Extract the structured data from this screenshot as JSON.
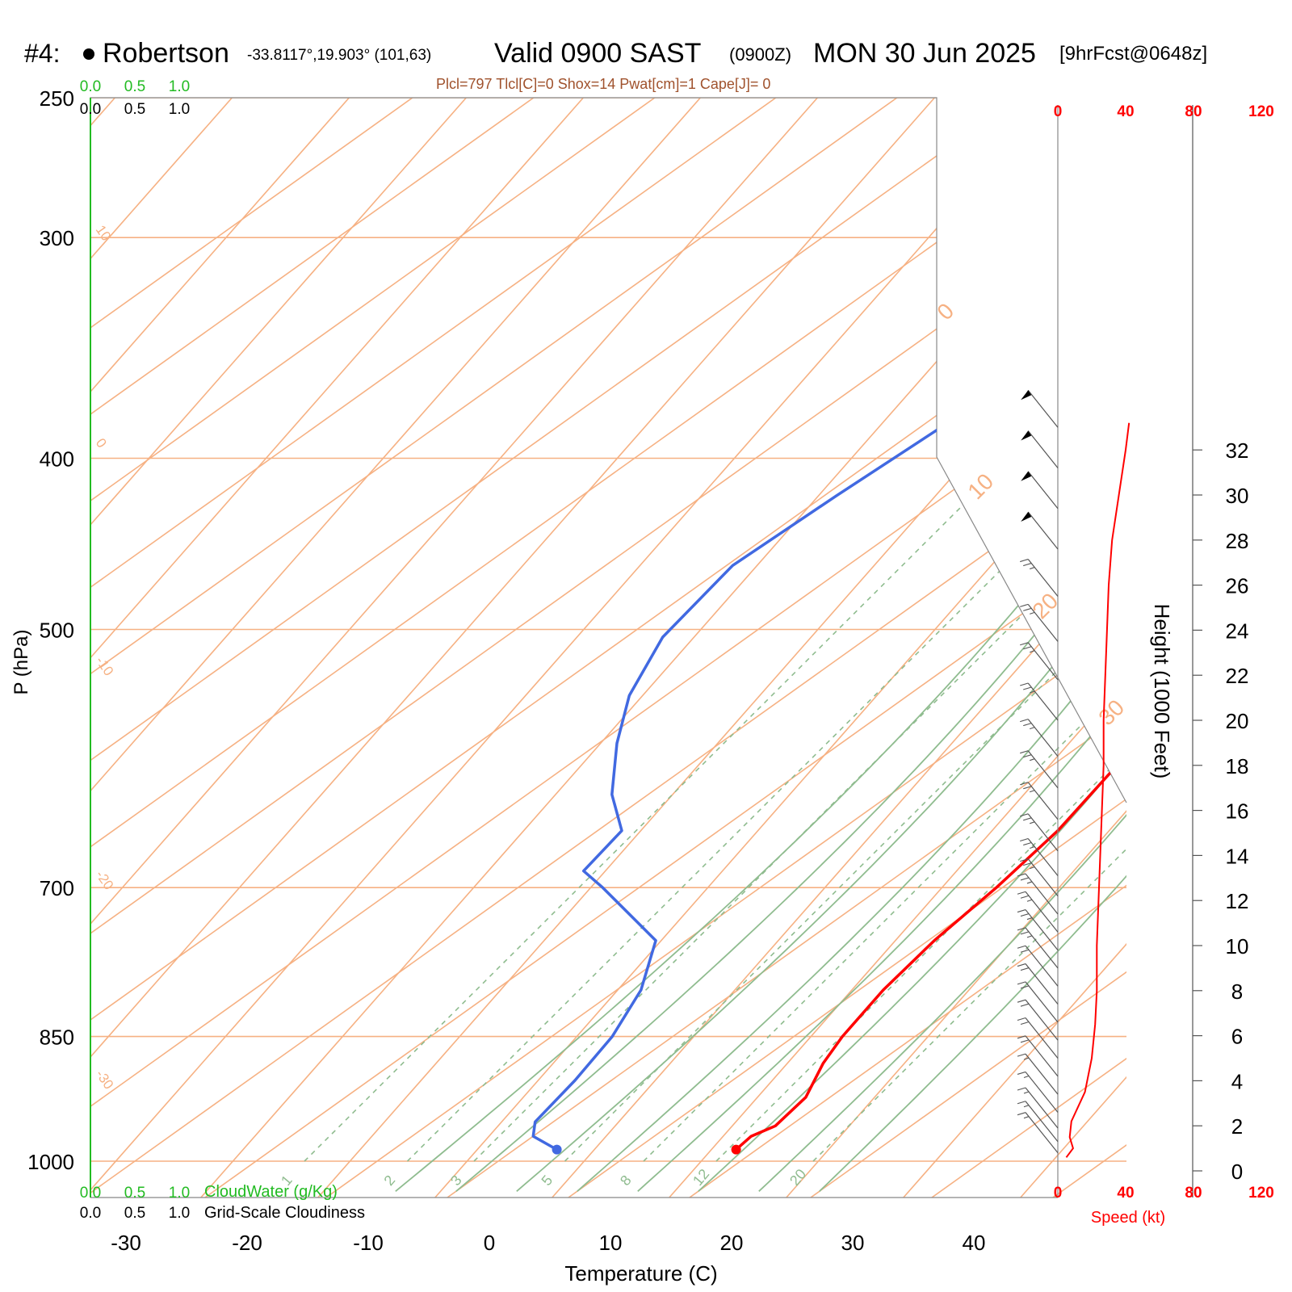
{
  "header": {
    "station_num": "#4:",
    "station_name": "Robertson",
    "coords": "-33.8117°,19.903° (101,63)",
    "valid_main": "Valid 0900 SAST",
    "valid_z": "(0900Z)",
    "date": "MON 30 Jun 2025",
    "forecast": "[9hrFcst@0648z]",
    "indices": "Plcl=797 Tlcl[C]=0 Shox=14 Pwat[cm]=1 Cape[J]= 0"
  },
  "colors": {
    "temperature": "#ff0000",
    "dewpoint": "#4169e1",
    "isotherm": "#f6b183",
    "dry_adiabat": "#8fbc8f",
    "mixing_ratio": "#8fbc8f",
    "cloud": "#22bb22",
    "wind": "#555555"
  },
  "chart_data": {
    "type": "skew-t",
    "title": "Robertson Valid 0900 SAST MON 30 Jun 2025",
    "xlabel": "Temperature (C)",
    "ylabel": "P (hPa)",
    "right_label": "Height (1000 Feet)",
    "speed_label": "Speed (kt)",
    "xlim": [
      -33,
      36
    ],
    "ylim": [
      1030,
      250
    ],
    "x_ticks": [
      -30,
      -20,
      -10,
      0,
      10,
      20,
      30,
      40
    ],
    "p_ticks": [
      1000,
      850,
      700,
      500,
      400,
      300,
      250
    ],
    "height_ticks": [
      0,
      2,
      4,
      6,
      8,
      10,
      12,
      14,
      16,
      18,
      20,
      22,
      24,
      26,
      28,
      30,
      32
    ],
    "speed_ticks": [
      0,
      40,
      80,
      120
    ],
    "cloud_ticks": [
      "0.0",
      "0.5",
      "1.0"
    ],
    "cloudwater_label": "CloudWater (g/Kg)",
    "cloudiness_label": "Grid-Scale Cloudiness",
    "mixing_ratio_labels": [
      "1",
      "2",
      "3",
      "5",
      "8",
      "12",
      "20"
    ],
    "mixing_ratio_values": [
      1,
      2,
      3,
      5,
      8,
      12,
      20
    ],
    "isotherm_labels_left": [
      "10",
      "0",
      "-10",
      "-20",
      "-30"
    ],
    "isotherm_labels_right": [
      "0",
      "10",
      "20",
      "30"
    ],
    "temperature": [
      {
        "p": 985,
        "t": 18.3
      },
      {
        "p": 968,
        "t": 18.0
      },
      {
        "p": 955,
        "t": 18.8
      },
      {
        "p": 920,
        "t": 18.0
      },
      {
        "p": 880,
        "t": 15.5
      },
      {
        "p": 850,
        "t": 14.0
      },
      {
        "p": 800,
        "t": 12.0
      },
      {
        "p": 750,
        "t": 10.5
      },
      {
        "p": 700,
        "t": 9.5
      },
      {
        "p": 650,
        "t": 8.0
      },
      {
        "p": 600,
        "t": 5.5
      },
      {
        "p": 550,
        "t": 2.5
      },
      {
        "p": 500,
        "t": -2.0
      },
      {
        "p": 450,
        "t": -8.5
      },
      {
        "p": 400,
        "t": -15.5
      },
      {
        "p": 350,
        "t": -22.5
      },
      {
        "p": 300,
        "t": -30.0
      },
      {
        "p": 262,
        "t": -36.5
      }
    ],
    "dewpoint": [
      {
        "p": 985,
        "t": 3.5
      },
      {
        "p": 968,
        "t": 0.0
      },
      {
        "p": 950,
        "t": -1.5
      },
      {
        "p": 900,
        "t": -3.0
      },
      {
        "p": 850,
        "t": -5.0
      },
      {
        "p": 800,
        "t": -8.0
      },
      {
        "p": 750,
        "t": -12.5
      },
      {
        "p": 700,
        "t": -23.0
      },
      {
        "p": 685,
        "t": -26.5
      },
      {
        "p": 650,
        "t": -28.0
      },
      {
        "p": 620,
        "t": -33.0
      },
      {
        "p": 580,
        "t": -38.5
      },
      {
        "p": 545,
        "t": -43.0
      },
      {
        "p": 505,
        "t": -47.0
      },
      {
        "p": 460,
        "t": -49.5
      },
      {
        "p": 420,
        "t": -49.0
      },
      {
        "p": 350,
        "t": -47.5
      },
      {
        "p": 320,
        "t": -48.0
      },
      {
        "p": 300,
        "t": -49.5
      },
      {
        "p": 280,
        "t": -51.5
      },
      {
        "p": 262,
        "t": -54.5
      }
    ],
    "wind_speed": [
      {
        "h": 0.6,
        "s": 5
      },
      {
        "h": 1.0,
        "s": 9
      },
      {
        "h": 1.5,
        "s": 7
      },
      {
        "h": 2.2,
        "s": 8
      },
      {
        "h": 3.5,
        "s": 16
      },
      {
        "h": 5.0,
        "s": 20
      },
      {
        "h": 6.5,
        "s": 22
      },
      {
        "h": 8.0,
        "s": 23
      },
      {
        "h": 10.0,
        "s": 23
      },
      {
        "h": 12.0,
        "s": 24
      },
      {
        "h": 14.0,
        "s": 25
      },
      {
        "h": 16.0,
        "s": 26
      },
      {
        "h": 18.0,
        "s": 27
      },
      {
        "h": 20.0,
        "s": 27
      },
      {
        "h": 22.0,
        "s": 28
      },
      {
        "h": 24.0,
        "s": 29
      },
      {
        "h": 26.0,
        "s": 30
      },
      {
        "h": 28.0,
        "s": 32
      },
      {
        "h": 30.0,
        "s": 36
      },
      {
        "h": 32.0,
        "s": 40
      },
      {
        "h": 33.2,
        "s": 42
      }
    ],
    "wind_barbs": [
      {
        "h": 0.8,
        "s": 15
      },
      {
        "h": 1.3,
        "s": 15
      },
      {
        "h": 1.9,
        "s": 15
      },
      {
        "h": 2.6,
        "s": 15
      },
      {
        "h": 3.4,
        "s": 15
      },
      {
        "h": 4.2,
        "s": 20
      },
      {
        "h": 5.0,
        "s": 20
      },
      {
        "h": 5.8,
        "s": 20
      },
      {
        "h": 6.6,
        "s": 20
      },
      {
        "h": 7.4,
        "s": 20
      },
      {
        "h": 8.2,
        "s": 20
      },
      {
        "h": 9.0,
        "s": 25
      },
      {
        "h": 9.8,
        "s": 25
      },
      {
        "h": 10.6,
        "s": 25
      },
      {
        "h": 11.4,
        "s": 25
      },
      {
        "h": 12.2,
        "s": 25
      },
      {
        "h": 13.1,
        "s": 25
      },
      {
        "h": 14.2,
        "s": 25
      },
      {
        "h": 15.6,
        "s": 25
      },
      {
        "h": 17.0,
        "s": 25
      },
      {
        "h": 18.4,
        "s": 25
      },
      {
        "h": 20.0,
        "s": 25
      },
      {
        "h": 21.8,
        "s": 25
      },
      {
        "h": 23.5,
        "s": 25
      },
      {
        "h": 25.5,
        "s": 25
      },
      {
        "h": 27.6,
        "s": 50
      },
      {
        "h": 29.4,
        "s": 50
      },
      {
        "h": 31.2,
        "s": 50
      },
      {
        "h": 33.0,
        "s": 50
      }
    ]
  }
}
